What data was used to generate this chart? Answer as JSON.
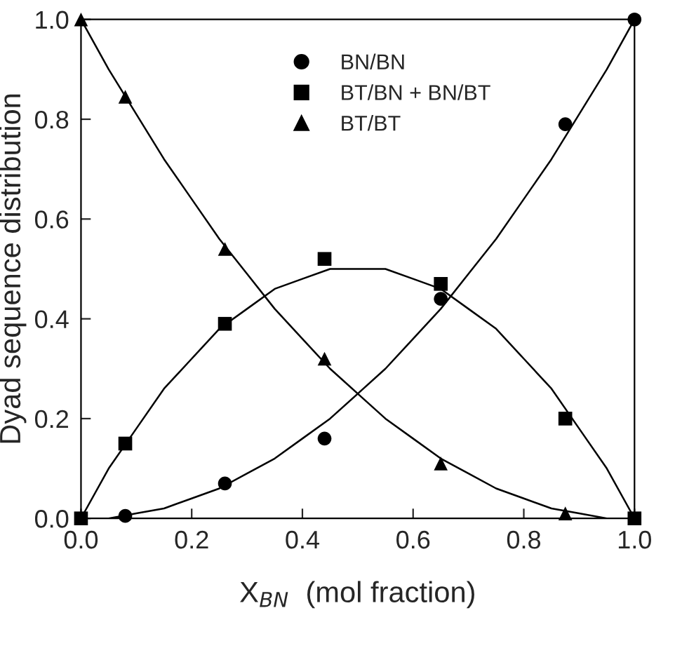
{
  "chart_data": {
    "type": "scatter",
    "xlabel": "X$_{BN}$  (mol fraction)",
    "ylabel": "Dyad sequence distribution",
    "xlim": [
      0,
      1.0
    ],
    "ylim": [
      0,
      1.0
    ],
    "xticks": [
      {
        "value": 0,
        "label": "0.0"
      },
      0.2,
      0.4,
      0.6,
      0.8,
      {
        "value": 1,
        "label": "1.0"
      }
    ],
    "yticks": [
      {
        "value": 0,
        "label": "0.0"
      },
      0.2,
      0.4,
      0.6,
      0.8,
      {
        "value": 1,
        "label": "1.0"
      }
    ],
    "grid": false,
    "legend": "top",
    "series": [
      {
        "name": "BN/BN",
        "color": "#000000",
        "marker": "circle",
        "x": [
          0.08,
          0.26,
          0.44,
          0.65,
          0.875,
          1.0
        ],
        "values": [
          0.005,
          0.07,
          0.16,
          0.44,
          0.79,
          1.0
        ]
      },
      {
        "name": "BT/BN + BN/BT",
        "color": "#000000",
        "marker": "square",
        "x": [
          0,
          0.08,
          0.26,
          0.44,
          0.65,
          0.875,
          1.0
        ],
        "values": [
          0,
          0.15,
          0.39,
          0.52,
          0.47,
          0.2,
          0
        ]
      },
      {
        "name": "BT/BT",
        "color": "#000000",
        "marker": "triangle",
        "x": [
          0,
          0.08,
          0.26,
          0.44,
          0.65,
          0.875
        ],
        "values": [
          1.0,
          0.845,
          0.54,
          0.32,
          0.11,
          0.01
        ]
      },
      {
        "type": "line",
        "color": "#000000",
        "marker": "none",
        "x": [
          0,
          0.05,
          0.1,
          0.15,
          0.2,
          0.25,
          0.3,
          0.35,
          0.4,
          0.45,
          0.5,
          0.55,
          0.6,
          0.65,
          0.7,
          0.75,
          0.8,
          0.85,
          0.9,
          0.95,
          1.0
        ],
        "values": [
          0,
          0.0,
          0.01,
          0.02,
          0.04,
          0.06,
          0.09,
          0.12,
          0.16,
          0.2,
          0.25,
          0.3,
          0.36,
          0.42,
          0.49,
          0.56,
          0.64,
          0.72,
          0.81,
          0.9,
          1.0
        ]
      },
      {
        "type": "line",
        "color": "#000000",
        "marker": "none",
        "x": [
          0,
          0.05,
          0.1,
          0.15,
          0.2,
          0.25,
          0.3,
          0.35,
          0.4,
          0.45,
          0.5,
          0.55,
          0.6,
          0.65,
          0.7,
          0.75,
          0.8,
          0.85,
          0.9,
          0.95,
          1.0
        ],
        "values": [
          0,
          0.1,
          0.18,
          0.26,
          0.32,
          0.38,
          0.42,
          0.46,
          0.48,
          0.5,
          0.5,
          0.5,
          0.48,
          0.46,
          0.42,
          0.38,
          0.32,
          0.26,
          0.18,
          0.1,
          0
        ]
      },
      {
        "type": "line",
        "color": "#000000",
        "marker": "none",
        "x": [
          0,
          0.05,
          0.1,
          0.15,
          0.2,
          0.25,
          0.3,
          0.35,
          0.4,
          0.45,
          0.5,
          0.55,
          0.6,
          0.65,
          0.7,
          0.75,
          0.8,
          0.85,
          0.9,
          0.95,
          1.0
        ],
        "values": [
          1.0,
          0.9,
          0.81,
          0.72,
          0.64,
          0.56,
          0.49,
          0.42,
          0.36,
          0.3,
          0.25,
          0.2,
          0.16,
          0.12,
          0.09,
          0.06,
          0.04,
          0.02,
          0.01,
          0.0,
          0
        ]
      }
    ]
  }
}
